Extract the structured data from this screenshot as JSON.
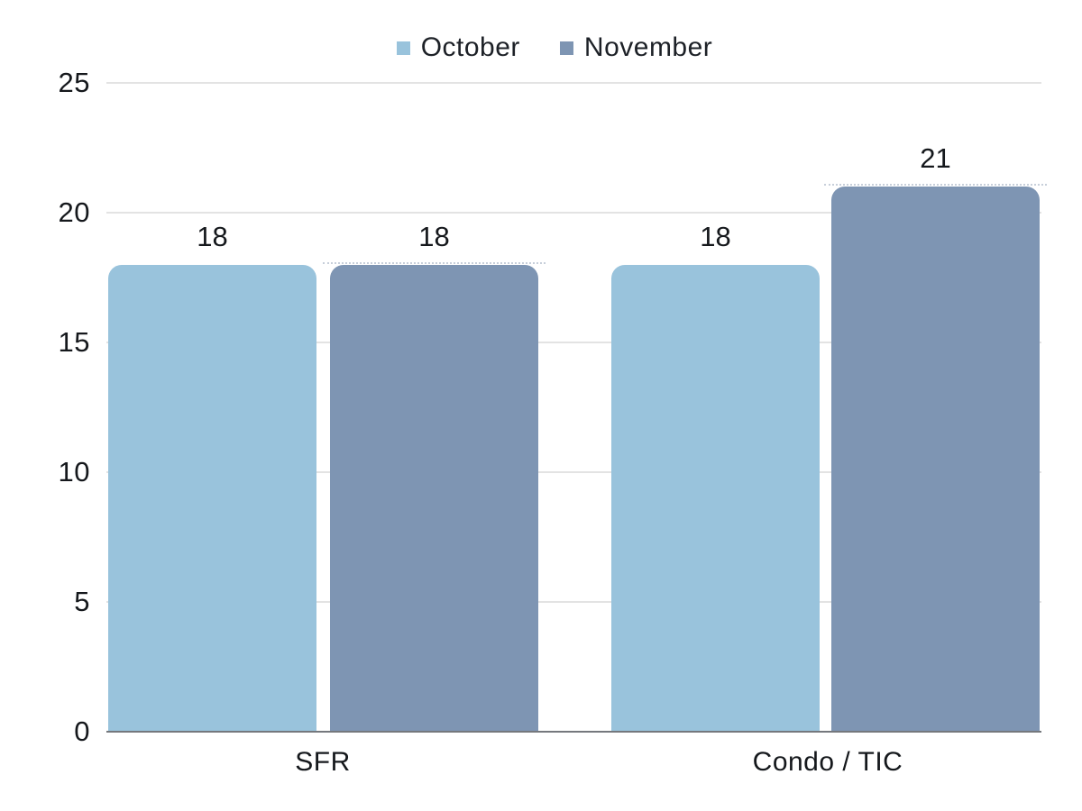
{
  "chart_data": {
    "type": "bar",
    "title": "",
    "categories": [
      "SFR",
      "Condo / TIC"
    ],
    "series": [
      {
        "name": "October",
        "color": "#99C3DC",
        "values": [
          18,
          18
        ]
      },
      {
        "name": "November",
        "color": "#7E95B3",
        "values": [
          18,
          21
        ]
      }
    ],
    "ylim": [
      0,
      25
    ],
    "yticks": [
      0,
      5,
      10,
      15,
      20,
      25
    ],
    "grid": true,
    "legend_position": "top",
    "value_labels_shown": true
  },
  "colors": {
    "october": "#99C3DC",
    "november": "#7E95B3",
    "gridline": "#e3e3e3",
    "baseline": "#75787d",
    "text": "#15181c"
  }
}
